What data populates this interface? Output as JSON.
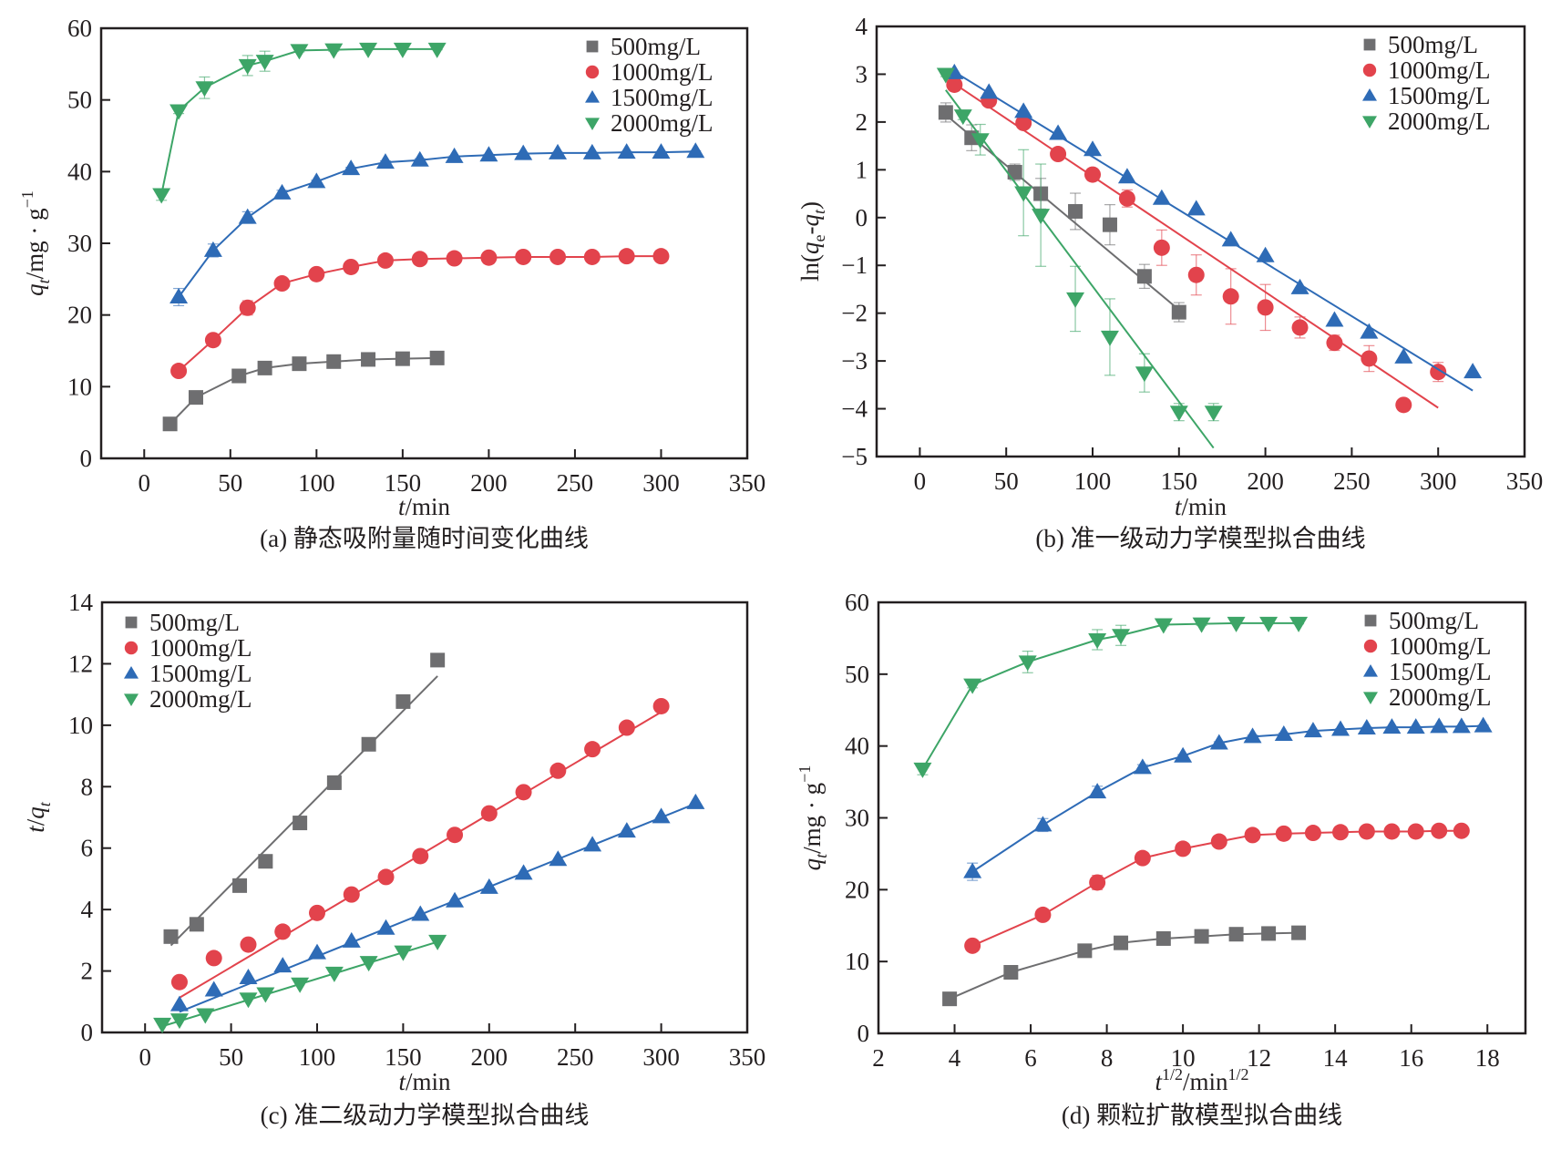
{
  "colors": {
    "500mg/L": "#6e6e70",
    "1000mg/L": "#e2434c",
    "1500mg/L": "#2e6bb6",
    "2000mg/L": "#3da567",
    "axis": "#231f20"
  },
  "legend": {
    "items": [
      {
        "label": "500mg/L",
        "marker": "square"
      },
      {
        "label": "1000mg/L",
        "marker": "circle"
      },
      {
        "label": "1500mg/L",
        "marker": "triangle-up"
      },
      {
        "label": "2000mg/L",
        "marker": "triangle-down"
      }
    ]
  },
  "chart_data": [
    {
      "id": "a",
      "type": "line",
      "caption": "(a) 静态吸附量随时间变化曲线",
      "xlabel": "t/min",
      "ylabel": "qt/mg·g⁻¹",
      "xlim": [
        -25,
        350
      ],
      "ylim": [
        0,
        60
      ],
      "xticks": [
        0,
        50,
        100,
        150,
        200,
        250,
        300,
        350
      ],
      "yticks": [
        0,
        10,
        20,
        30,
        40,
        50,
        60
      ],
      "legend_position": "top-right",
      "connect_points": true,
      "series": [
        {
          "name": "500mg/L",
          "x": [
            15,
            30,
            55,
            70,
            90,
            110,
            130,
            150,
            170
          ],
          "y": [
            4.8,
            8.5,
            11.5,
            12.6,
            13.2,
            13.5,
            13.8,
            13.9,
            14.0
          ],
          "err": [
            0,
            0,
            0,
            0,
            0,
            0,
            0,
            0,
            0
          ]
        },
        {
          "name": "1000mg/L",
          "x": [
            20,
            40,
            60,
            80,
            100,
            120,
            140,
            160,
            180,
            200,
            220,
            240,
            260,
            280,
            300
          ],
          "y": [
            12.2,
            16.5,
            21.0,
            24.4,
            25.7,
            26.7,
            27.6,
            27.8,
            27.9,
            28.0,
            28.1,
            28.1,
            28.1,
            28.2,
            28.2
          ],
          "err": [
            0.7,
            0.8,
            1.0,
            0.3,
            0.3,
            0.2,
            0.2,
            0.2,
            0.2,
            0.1,
            0.1,
            0.1,
            0.1,
            0.1,
            0.1
          ]
        },
        {
          "name": "1500mg/L",
          "x": [
            20,
            40,
            60,
            80,
            100,
            120,
            140,
            160,
            180,
            200,
            220,
            240,
            260,
            280,
            300,
            320
          ],
          "y": [
            22.5,
            29.0,
            33.6,
            37.0,
            38.6,
            40.4,
            41.3,
            41.6,
            42.1,
            42.3,
            42.5,
            42.6,
            42.6,
            42.7,
            42.7,
            42.8
          ],
          "err": [
            1.2,
            0.9,
            0.8,
            0.4,
            0.2,
            0.2,
            0.2,
            0.2,
            0.1,
            0.1,
            0.1,
            0.1,
            0.1,
            0.1,
            0.1,
            0.1
          ]
        },
        {
          "name": "2000mg/L",
          "x": [
            10,
            20,
            35,
            60,
            70,
            90,
            110,
            130,
            150,
            170
          ],
          "y": [
            36.8,
            48.5,
            51.7,
            54.8,
            55.4,
            56.9,
            57.0,
            57.1,
            57.1,
            57.1
          ],
          "err": [
            0.8,
            0.4,
            1.5,
            1.4,
            1.4,
            0.2,
            0.2,
            0.1,
            0.1,
            0.1
          ]
        }
      ]
    },
    {
      "id": "b",
      "type": "scatter",
      "caption": "(b) 准一级动力学模型拟合曲线",
      "xlabel": "t/min",
      "ylabel": "ln(qe-qt)",
      "xlim": [
        -25,
        350
      ],
      "ylim": [
        -5,
        4
      ],
      "xticks": [
        0,
        50,
        100,
        150,
        200,
        250,
        300,
        350
      ],
      "yticks": [
        -5,
        -4,
        -3,
        -2,
        -1,
        0,
        1,
        2,
        3,
        4
      ],
      "legend_position": "top-right",
      "connect_points": false,
      "series": [
        {
          "name": "500mg/L",
          "x": [
            15,
            30,
            55,
            70,
            90,
            110,
            130,
            150
          ],
          "y": [
            2.2,
            1.67,
            0.95,
            0.5,
            0.13,
            -0.15,
            -1.23,
            -1.98
          ],
          "err": [
            0.2,
            0.27,
            0.17,
            0.32,
            0.38,
            0.42,
            0.25,
            0.2
          ],
          "fit": {
            "x": [
              15,
              150
            ],
            "y": [
              2.15,
              -1.93
            ]
          }
        },
        {
          "name": "1000mg/L",
          "x": [
            20,
            40,
            60,
            80,
            100,
            120,
            140,
            160,
            180,
            200,
            220,
            240,
            260,
            280,
            300
          ],
          "y": [
            2.78,
            2.45,
            1.98,
            1.33,
            0.9,
            0.4,
            -0.63,
            -1.2,
            -1.65,
            -1.88,
            -2.3,
            -2.62,
            -2.95,
            -3.92,
            -3.23
          ],
          "err": [
            0,
            0,
            0.08,
            0,
            0,
            0.18,
            0.37,
            0.42,
            0.58,
            0.48,
            0.22,
            0.16,
            0.27,
            0.1,
            0.2
          ],
          "fit": {
            "x": [
              20,
              300
            ],
            "y": [
              2.8,
              -3.98
            ]
          }
        },
        {
          "name": "1500mg/L",
          "x": [
            20,
            40,
            60,
            80,
            100,
            120,
            140,
            160,
            180,
            200,
            220,
            240,
            260,
            280,
            320
          ],
          "y": [
            3.03,
            2.62,
            2.22,
            1.76,
            1.42,
            0.85,
            0.4,
            0.18,
            -0.47,
            -0.8,
            -1.47,
            -2.15,
            -2.4,
            -2.92,
            -3.23
          ],
          "err": [
            0,
            0,
            0,
            0,
            0,
            0,
            0,
            0,
            0,
            0,
            0,
            0,
            0,
            0,
            0
          ],
          "fit": {
            "x": [
              20,
              320
            ],
            "y": [
              3.05,
              -3.62
            ]
          }
        },
        {
          "name": "2000mg/L",
          "x": [
            15,
            25,
            35,
            60,
            70,
            90,
            110,
            130,
            150,
            170
          ],
          "y": [
            3.0,
            2.13,
            1.63,
            0.52,
            0.05,
            -1.7,
            -2.5,
            -3.25,
            -4.07,
            -4.07
          ],
          "err": [
            0.05,
            0.08,
            0.32,
            0.9,
            1.07,
            0.68,
            0.8,
            0.4,
            0.18,
            0.18
          ],
          "fit": {
            "x": [
              15,
              170
            ],
            "y": [
              2.67,
              -4.82
            ]
          }
        }
      ]
    },
    {
      "id": "c",
      "type": "scatter",
      "caption": "(c) 准二级动力学模型拟合曲线",
      "xlabel": "t/min",
      "ylabel": "t/qt",
      "xlim": [
        -25,
        350
      ],
      "ylim": [
        0,
        14
      ],
      "xticks": [
        0,
        50,
        100,
        150,
        200,
        250,
        300,
        350
      ],
      "yticks": [
        0,
        2,
        4,
        6,
        8,
        10,
        12,
        14
      ],
      "legend_position": "top-left",
      "connect_points": false,
      "series": [
        {
          "name": "500mg/L",
          "x": [
            15,
            30,
            55,
            70,
            90,
            110,
            130,
            150,
            170
          ],
          "y": [
            3.12,
            3.52,
            4.78,
            5.57,
            6.82,
            8.13,
            9.38,
            10.77,
            12.12
          ],
          "err": [
            0,
            0,
            0,
            0,
            0.18,
            0.22,
            0.1,
            0.05,
            0.05
          ],
          "fit": {
            "x": [
              15,
              170
            ],
            "y": [
              2.83,
              11.6
            ]
          }
        },
        {
          "name": "1000mg/L",
          "x": [
            20,
            40,
            60,
            80,
            100,
            120,
            140,
            160,
            180,
            200,
            220,
            240,
            260,
            280,
            300
          ],
          "y": [
            1.64,
            2.42,
            2.86,
            3.28,
            3.89,
            4.49,
            5.06,
            5.74,
            6.43,
            7.13,
            7.82,
            8.52,
            9.22,
            9.92,
            10.62
          ],
          "err": [
            0,
            0,
            0,
            0,
            0,
            0,
            0,
            0,
            0,
            0,
            0,
            0,
            0,
            0,
            0
          ],
          "fit": {
            "x": [
              20,
              300
            ],
            "y": [
              1.13,
              10.43
            ]
          }
        },
        {
          "name": "1500mg/L",
          "x": [
            20,
            40,
            60,
            80,
            100,
            120,
            140,
            160,
            180,
            200,
            220,
            240,
            260,
            280,
            300,
            320
          ],
          "y": [
            0.9,
            1.38,
            1.78,
            2.16,
            2.59,
            2.97,
            3.39,
            3.84,
            4.28,
            4.72,
            5.18,
            5.63,
            6.1,
            6.55,
            7.02,
            7.48
          ],
          "err": [
            0,
            0,
            0,
            0,
            0,
            0,
            0,
            0,
            0,
            0,
            0,
            0,
            0,
            0,
            0,
            0
          ],
          "fit": {
            "x": [
              20,
              320
            ],
            "y": [
              0.67,
              7.45
            ]
          }
        },
        {
          "name": "2000mg/L",
          "x": [
            10,
            20,
            35,
            60,
            70,
            90,
            110,
            130,
            150,
            170
          ],
          "y": [
            0.27,
            0.41,
            0.58,
            1.09,
            1.26,
            1.58,
            1.93,
            2.28,
            2.62,
            2.97
          ],
          "err": [
            0,
            0,
            0,
            0,
            0,
            0,
            0,
            0,
            0,
            0
          ],
          "fit": {
            "x": [
              10,
              170
            ],
            "y": [
              0.2,
              2.95
            ]
          }
        }
      ]
    },
    {
      "id": "d",
      "type": "line",
      "caption": "(d) 颗粒扩散模型拟合曲线",
      "xlabel": "t1/2/min1/2",
      "ylabel": "qt/mg·g⁻¹",
      "xlim": [
        2,
        19
      ],
      "ylim": [
        0,
        60
      ],
      "xticks": [
        2,
        4,
        6,
        8,
        10,
        12,
        14,
        16,
        18
      ],
      "yticks": [
        0,
        10,
        20,
        30,
        40,
        50,
        60
      ],
      "legend_position": "top-right",
      "connect_points": true,
      "series": [
        {
          "name": "500mg/L",
          "x": [
            3.87,
            5.48,
            7.42,
            8.37,
            9.49,
            10.49,
            11.4,
            12.25,
            13.04
          ],
          "y": [
            4.8,
            8.5,
            11.5,
            12.6,
            13.2,
            13.5,
            13.8,
            13.9,
            14.0
          ],
          "err": [
            0,
            0,
            0,
            0,
            0,
            0,
            0,
            0,
            0
          ]
        },
        {
          "name": "1000mg/L",
          "x": [
            4.47,
            6.32,
            7.75,
            8.94,
            10.0,
            10.95,
            11.83,
            12.65,
            13.42,
            14.14,
            14.83,
            15.49,
            16.12,
            16.73,
            17.32
          ],
          "y": [
            12.2,
            16.5,
            21.0,
            24.4,
            25.7,
            26.7,
            27.6,
            27.8,
            27.9,
            28.0,
            28.1,
            28.1,
            28.1,
            28.2,
            28.2
          ],
          "err": [
            0.7,
            0.8,
            1.0,
            0.3,
            0.3,
            0.2,
            0.2,
            0.2,
            0.2,
            0.1,
            0.1,
            0.1,
            0.1,
            0.1,
            0.1
          ]
        },
        {
          "name": "1500mg/L",
          "x": [
            4.47,
            6.32,
            7.75,
            8.94,
            10.0,
            10.95,
            11.83,
            12.65,
            13.42,
            14.14,
            14.83,
            15.49,
            16.12,
            16.73,
            17.32,
            17.89
          ],
          "y": [
            22.5,
            29.0,
            33.6,
            37.0,
            38.6,
            40.4,
            41.3,
            41.6,
            42.1,
            42.3,
            42.5,
            42.6,
            42.6,
            42.7,
            42.7,
            42.8
          ],
          "err": [
            1.2,
            0.9,
            0.8,
            0.4,
            0.2,
            0.2,
            0.2,
            0.2,
            0.1,
            0.1,
            0.1,
            0.1,
            0.1,
            0.1,
            0.1,
            0.1
          ]
        },
        {
          "name": "2000mg/L",
          "x": [
            3.16,
            4.47,
            5.92,
            7.75,
            8.37,
            9.49,
            10.49,
            11.4,
            12.25,
            13.04
          ],
          "y": [
            36.8,
            48.5,
            51.7,
            54.8,
            55.4,
            56.9,
            57.0,
            57.1,
            57.1,
            57.1
          ],
          "err": [
            0.8,
            0.4,
            1.5,
            1.4,
            1.4,
            0.2,
            0.2,
            0.1,
            0.1,
            0.1
          ]
        }
      ]
    }
  ]
}
